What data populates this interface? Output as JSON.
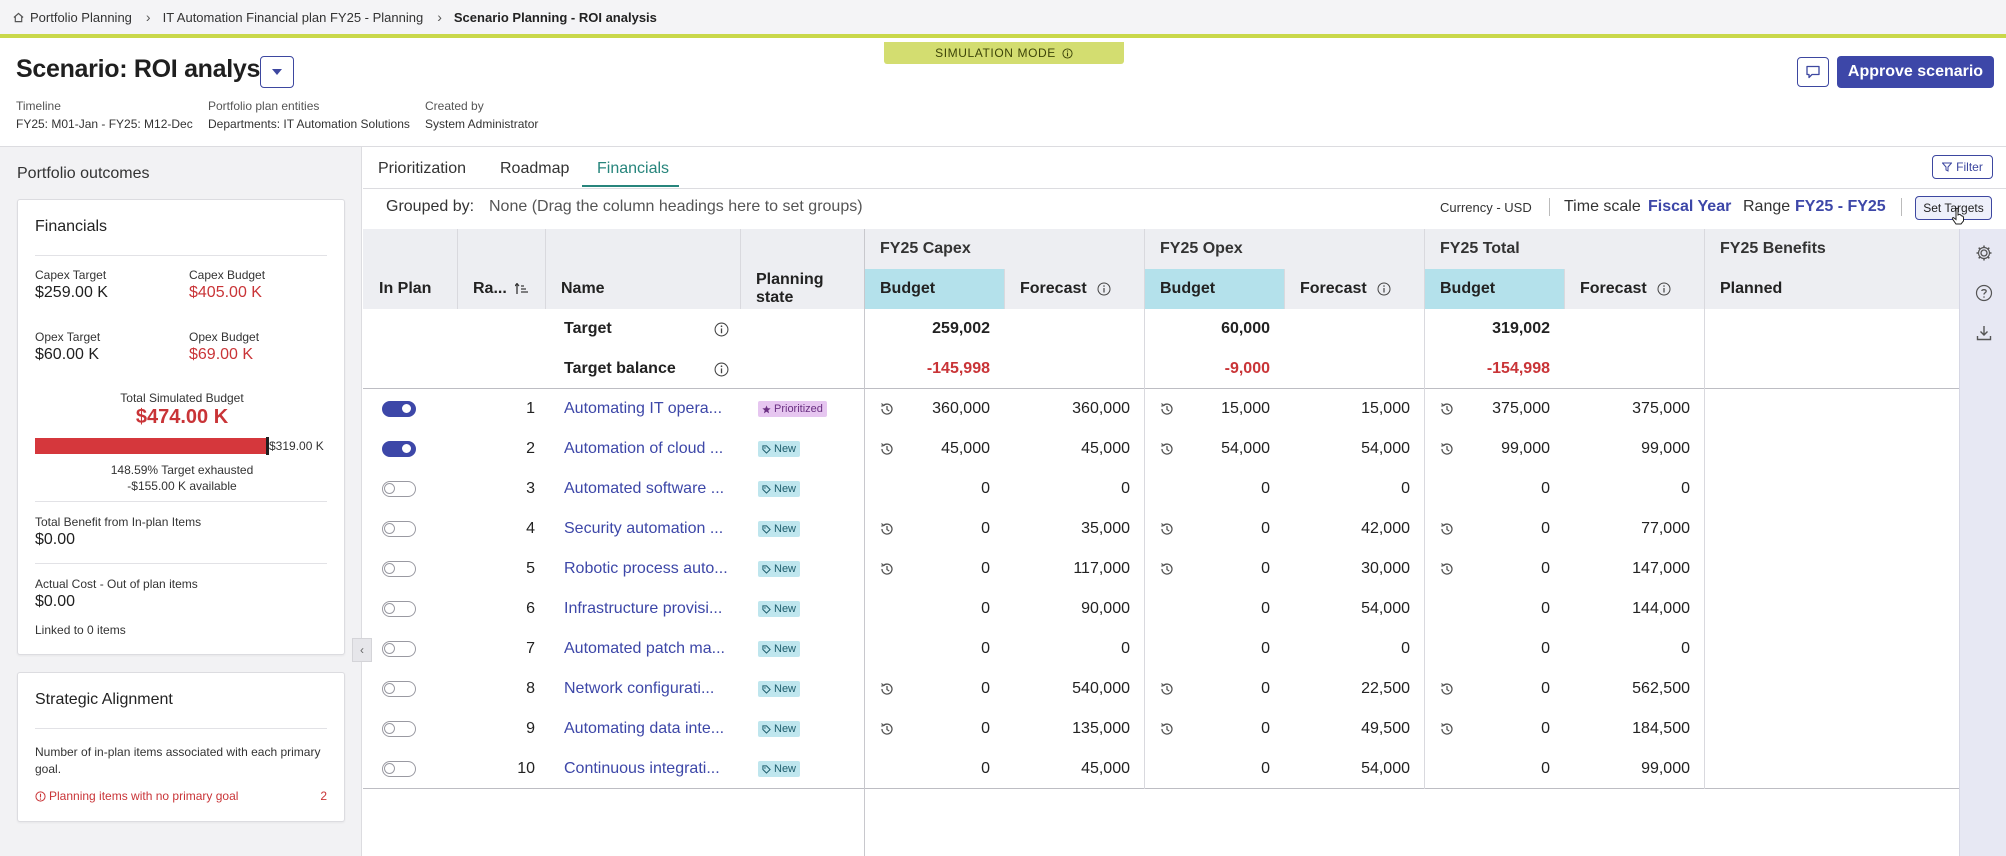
{
  "breadcrumb": {
    "items": [
      "Portfolio Planning",
      "IT Automation Financial plan FY25 - Planning",
      "Scenario Planning - ROI analysis"
    ]
  },
  "simulation_badge": "SIMULATION MODE",
  "header": {
    "title": "Scenario: ROI analysis",
    "approve_label": "Approve scenario",
    "meta": {
      "timeline_label": "Timeline",
      "timeline_value": "FY25: M01-Jan - FY25: M12-Dec",
      "entities_label": "Portfolio plan entities",
      "entities_value": "Departments: IT Automation Solutions",
      "created_label": "Created by",
      "created_value": "System Administrator"
    }
  },
  "left_panel": {
    "title": "Portfolio outcomes",
    "financials": {
      "title": "Financials",
      "capex_target_label": "Capex Target",
      "capex_target_value": "$259.00 K",
      "capex_budget_label": "Capex Budget",
      "capex_budget_value": "$405.00 K",
      "opex_target_label": "Opex Target",
      "opex_target_value": "$60.00 K",
      "opex_budget_label": "Opex Budget",
      "opex_budget_value": "$69.00 K",
      "total_budget_label": "Total Simulated Budget",
      "total_budget_value": "$474.00 K",
      "bar_target_label": "$319.00 K",
      "bar_fill_fraction": 1.0,
      "exhausted_text": "148.59% Target exhausted",
      "available_text": "-$155.00 K available",
      "benefit_label": "Total Benefit from In-plan Items",
      "benefit_value": "$0.00",
      "actual_cost_label": "Actual Cost - Out of plan items",
      "actual_cost_value": "$0.00",
      "linked_text": "Linked to 0 items"
    },
    "strategic": {
      "title": "Strategic Alignment",
      "description": "Number of in-plan items associated with each primary goal.",
      "warning_label": "Planning items with no primary goal",
      "warning_count": "2"
    }
  },
  "tabs": [
    {
      "label": "Prioritization"
    },
    {
      "label": "Roadmap"
    },
    {
      "label": "Financials"
    }
  ],
  "toolbar": {
    "filter_label": "Filter",
    "grouped_label": "Grouped by:",
    "grouped_value": "None (Drag the column headings here to set groups)",
    "currency_label": "Currency - USD",
    "timescale_label": "Time scale",
    "timescale_value": "Fiscal Year",
    "range_label": "Range",
    "range_value": "FY25 - FY25",
    "set_targets_label": "Set Targets"
  },
  "grid": {
    "group_headers": {
      "capex": "FY25 Capex",
      "opex": "FY25 Opex",
      "total": "FY25 Total",
      "benefits": "FY25 Benefits"
    },
    "columns": {
      "in_plan": "In Plan",
      "rank": "Ra...",
      "name": "Name",
      "planning_state": "Planning state",
      "capex_budget": "Budget",
      "capex_forecast": "Forecast",
      "opex_budget": "Budget",
      "opex_forecast": "Forecast",
      "total_budget": "Budget",
      "total_forecast": "Forecast",
      "benefits_planned": "Planned"
    },
    "target_row": {
      "label": "Target",
      "capex": "259,002",
      "opex": "60,000",
      "total": "319,002"
    },
    "balance_row": {
      "label": "Target balance",
      "capex": "-145,998",
      "opex": "-9,000",
      "total": "-154,998"
    },
    "rows": [
      {
        "in_plan": true,
        "rank": "1",
        "name": "Automating IT opera...",
        "state": "Prioritized",
        "state_kind": "prio",
        "capex_hist": true,
        "capex_budget": "360,000",
        "capex_forecast": "360,000",
        "opex_hist": true,
        "opex_budget": "15,000",
        "opex_forecast": "15,000",
        "total_hist": true,
        "total_budget": "375,000",
        "total_forecast": "375,000"
      },
      {
        "in_plan": true,
        "rank": "2",
        "name": "Automation of cloud ...",
        "state": "New",
        "state_kind": "new",
        "capex_hist": true,
        "capex_budget": "45,000",
        "capex_forecast": "45,000",
        "opex_hist": true,
        "opex_budget": "54,000",
        "opex_forecast": "54,000",
        "total_hist": true,
        "total_budget": "99,000",
        "total_forecast": "99,000"
      },
      {
        "in_plan": false,
        "rank": "3",
        "name": "Automated software ...",
        "state": "New",
        "state_kind": "new",
        "capex_hist": false,
        "capex_budget": "0",
        "capex_forecast": "0",
        "opex_hist": false,
        "opex_budget": "0",
        "opex_forecast": "0",
        "total_hist": false,
        "total_budget": "0",
        "total_forecast": "0"
      },
      {
        "in_plan": false,
        "rank": "4",
        "name": "Security automation ...",
        "state": "New",
        "state_kind": "new",
        "capex_hist": true,
        "capex_budget": "0",
        "capex_forecast": "35,000",
        "opex_hist": true,
        "opex_budget": "0",
        "opex_forecast": "42,000",
        "total_hist": true,
        "total_budget": "0",
        "total_forecast": "77,000"
      },
      {
        "in_plan": false,
        "rank": "5",
        "name": "Robotic process auto...",
        "state": "New",
        "state_kind": "new",
        "capex_hist": true,
        "capex_budget": "0",
        "capex_forecast": "117,000",
        "opex_hist": true,
        "opex_budget": "0",
        "opex_forecast": "30,000",
        "total_hist": true,
        "total_budget": "0",
        "total_forecast": "147,000"
      },
      {
        "in_plan": false,
        "rank": "6",
        "name": "Infrastructure provisi...",
        "state": "New",
        "state_kind": "new",
        "capex_hist": false,
        "capex_budget": "0",
        "capex_forecast": "90,000",
        "opex_hist": false,
        "opex_budget": "0",
        "opex_forecast": "54,000",
        "total_hist": false,
        "total_budget": "0",
        "total_forecast": "144,000"
      },
      {
        "in_plan": false,
        "rank": "7",
        "name": "Automated patch ma...",
        "state": "New",
        "state_kind": "new",
        "capex_hist": false,
        "capex_budget": "0",
        "capex_forecast": "0",
        "opex_hist": false,
        "opex_budget": "0",
        "opex_forecast": "0",
        "total_hist": false,
        "total_budget": "0",
        "total_forecast": "0"
      },
      {
        "in_plan": false,
        "rank": "8",
        "name": "Network configurati...",
        "state": "New",
        "state_kind": "new",
        "capex_hist": true,
        "capex_budget": "0",
        "capex_forecast": "540,000",
        "opex_hist": true,
        "opex_budget": "0",
        "opex_forecast": "22,500",
        "total_hist": true,
        "total_budget": "0",
        "total_forecast": "562,500"
      },
      {
        "in_plan": false,
        "rank": "9",
        "name": "Automating data inte...",
        "state": "New",
        "state_kind": "new",
        "capex_hist": true,
        "capex_budget": "0",
        "capex_forecast": "135,000",
        "opex_hist": true,
        "opex_budget": "0",
        "opex_forecast": "49,500",
        "total_hist": true,
        "total_budget": "0",
        "total_forecast": "184,500"
      },
      {
        "in_plan": false,
        "rank": "10",
        "name": "Continuous integrati...",
        "state": "New",
        "state_kind": "new",
        "capex_hist": false,
        "capex_budget": "0",
        "capex_forecast": "45,000",
        "opex_hist": false,
        "opex_budget": "0",
        "opex_forecast": "54,000",
        "total_hist": false,
        "total_budget": "0",
        "total_forecast": "99,000"
      }
    ]
  },
  "right_rail": {
    "icons": [
      "gear-icon",
      "help-icon",
      "download-icon"
    ]
  },
  "colors": {
    "accent": "#3d47a8",
    "tab_active": "#27857c",
    "danger": "#c93437",
    "sim_badge": "#d3dd70",
    "budget_header": "#b4e1eb"
  }
}
